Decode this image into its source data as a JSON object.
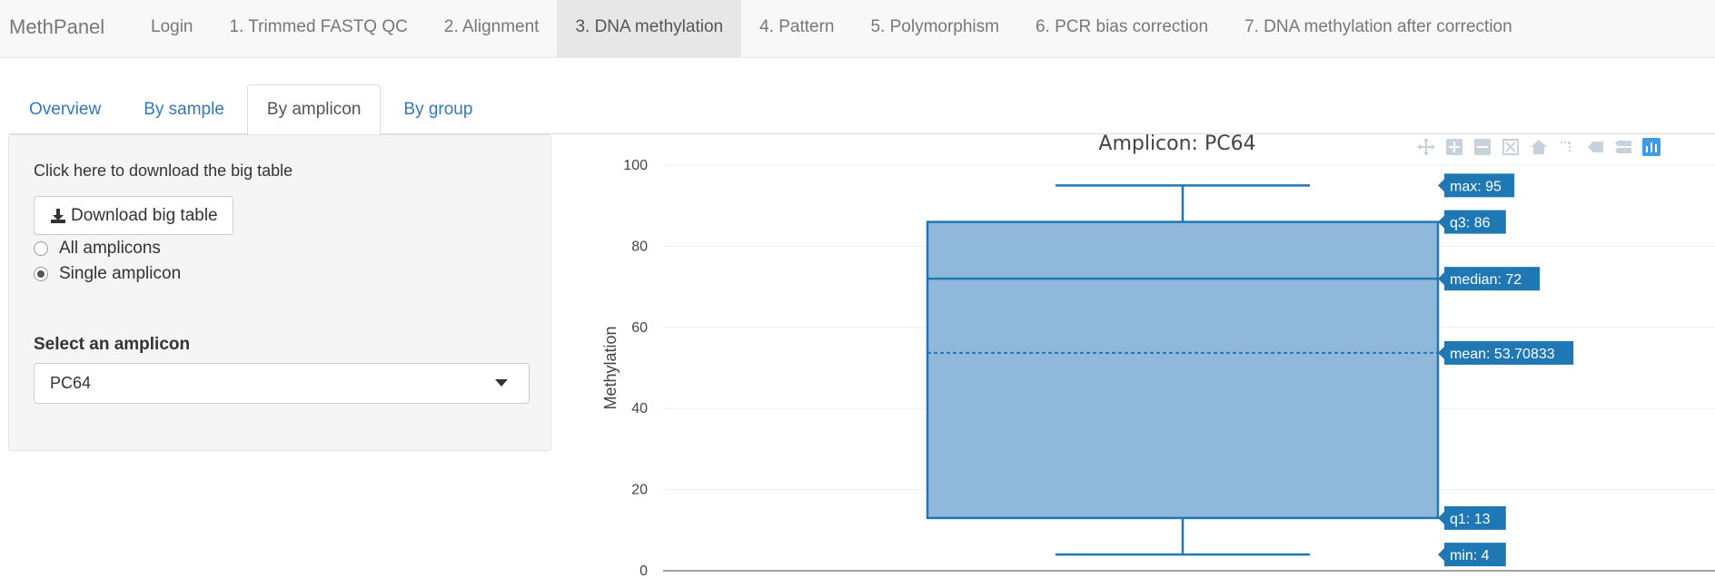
{
  "navbar": {
    "brand": "MethPanel",
    "items": [
      {
        "label": "Login"
      },
      {
        "label": "1. Trimmed FASTQ QC"
      },
      {
        "label": "2. Alignment"
      },
      {
        "label": "3. DNA methylation",
        "active": true
      },
      {
        "label": "4. Pattern"
      },
      {
        "label": "5. Polymorphism"
      },
      {
        "label": "6. PCR bias correction"
      },
      {
        "label": "7. DNA methylation after correction"
      }
    ]
  },
  "tabs": [
    {
      "label": "Overview"
    },
    {
      "label": "By sample"
    },
    {
      "label": "By amplicon",
      "active": true
    },
    {
      "label": "By group"
    }
  ],
  "sidebar": {
    "download_text": "Click here to download the big table",
    "download_button": "Download big table",
    "radios": [
      {
        "label": "All amplicons",
        "checked": false
      },
      {
        "label": "Single amplicon",
        "checked": true
      }
    ],
    "select_label": "Select an amplicon",
    "select_value": "PC64"
  },
  "toolbar_icons": [
    "pan-icon",
    "zoom-in-icon",
    "zoom-out-icon",
    "autoscale-icon",
    "reset-axes-icon",
    "spike-lines-icon",
    "hover-closest-icon",
    "hover-compare-icon",
    "plotly-logo-icon"
  ],
  "chart_data": {
    "type": "box",
    "title": "Amplicon: PC64",
    "ylabel": "Methylation",
    "xlabel": "",
    "ylim": [
      0,
      100
    ],
    "yticks": [
      0,
      20,
      40,
      60,
      80,
      100
    ],
    "grid": true,
    "color": "#1f77b4",
    "fill": "#8fb8db",
    "stats": {
      "min": 4,
      "q1": 13,
      "median": 72,
      "mean": 53.70833,
      "q3": 86,
      "max": 95
    },
    "hover_labels": [
      {
        "key": "max",
        "text": "max: 95"
      },
      {
        "key": "q3",
        "text": "q3: 86"
      },
      {
        "key": "median",
        "text": "median: 72"
      },
      {
        "key": "mean",
        "text": "mean: 53.70833"
      },
      {
        "key": "q1",
        "text": "q1: 13"
      },
      {
        "key": "min",
        "text": "min: 4"
      }
    ]
  }
}
